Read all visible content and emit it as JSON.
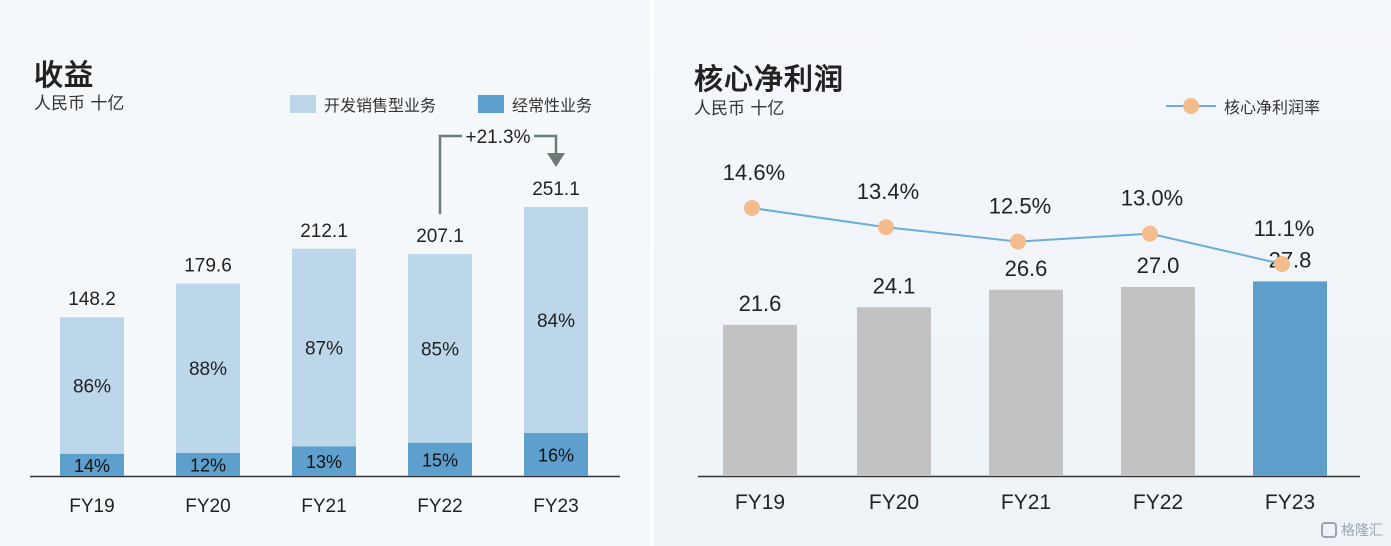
{
  "chart_data": [
    {
      "type": "bar",
      "title": "收益",
      "subtitle": "人民币 十亿",
      "categories": [
        "FY19",
        "FY20",
        "FY21",
        "FY22",
        "FY23"
      ],
      "totals": [
        "148.2",
        "179.6",
        "212.1",
        "207.1",
        "251.1"
      ],
      "total_values": [
        148.2,
        179.6,
        212.1,
        207.1,
        251.1
      ],
      "series": [
        {
          "name": "开发销售型业务",
          "share": [
            86,
            88,
            87,
            85,
            84
          ],
          "labels": [
            "86%",
            "88%",
            "87%",
            "85%",
            "84%"
          ],
          "color": "#bdd7ea"
        },
        {
          "name": "经常性业务",
          "share": [
            14,
            12,
            13,
            15,
            16
          ],
          "labels": [
            "14%",
            "12%",
            "13%",
            "15%",
            "16%"
          ],
          "color": "#5d9fcd"
        }
      ],
      "stacked": true,
      "annotation": {
        "text": "+21.3%",
        "from": "FY22",
        "to": "FY23"
      },
      "legend_position": "top-right",
      "ylim": [
        0,
        280
      ],
      "grid": false
    },
    {
      "type": "bar",
      "title": "核心净利润",
      "subtitle": "人民币 十亿",
      "categories": [
        "FY19",
        "FY20",
        "FY21",
        "FY22",
        "FY23"
      ],
      "values": [
        21.6,
        24.1,
        26.6,
        27.0,
        27.8
      ],
      "value_labels": [
        "21.6",
        "24.1",
        "26.6",
        "27.0",
        "27.8"
      ],
      "bar_colors": [
        "#c2c2c2",
        "#c2c2c2",
        "#c2c2c2",
        "#c2c2c2",
        "#5e9ecb"
      ],
      "ylim": [
        0,
        40
      ],
      "line_series": {
        "name": "核心净利润率",
        "values": [
          14.6,
          13.4,
          12.5,
          13.0,
          11.1
        ],
        "labels": [
          "14.6%",
          "13.4%",
          "12.5%",
          "13.0%",
          "11.1%"
        ],
        "line_color": "#6aaed6",
        "marker_color": "#f4bc8c"
      },
      "legend_position": "top-right",
      "grid": false
    }
  ],
  "watermark": {
    "text": "格隆汇"
  }
}
